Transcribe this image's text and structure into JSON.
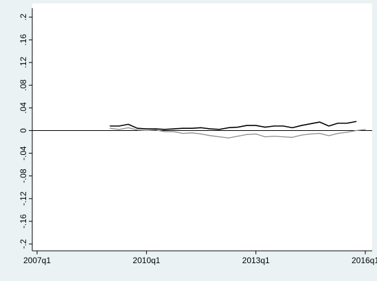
{
  "chart_data": {
    "type": "line",
    "title": "",
    "xlabel": "",
    "ylabel": "",
    "ylim": [
      -0.2,
      0.2
    ],
    "yticks": [
      {
        "value": -0.2,
        "label": "-.2"
      },
      {
        "value": -0.16,
        "label": "-.16"
      },
      {
        "value": -0.12,
        "label": "-.12"
      },
      {
        "value": -0.08,
        "label": "-.08"
      },
      {
        "value": -0.04,
        "label": "-.04"
      },
      {
        "value": 0,
        "label": "0"
      },
      {
        "value": 0.04,
        "label": ".04"
      },
      {
        "value": 0.08,
        "label": ".08"
      },
      {
        "value": 0.12,
        "label": ".12"
      },
      {
        "value": 0.16,
        "label": ".16"
      },
      {
        "value": 0.2,
        "label": ".2"
      }
    ],
    "xticks": [
      "2007q1",
      "2010q1",
      "2013q1",
      "2016q1"
    ],
    "x": [
      "2009q1",
      "2009q2",
      "2009q3",
      "2009q4",
      "2010q1",
      "2010q2",
      "2010q3",
      "2010q4",
      "2011q1",
      "2011q2",
      "2011q3",
      "2011q4",
      "2012q1",
      "2012q2",
      "2012q3",
      "2012q4",
      "2013q1",
      "2013q2",
      "2013q3",
      "2013q4",
      "2014q1",
      "2014q2",
      "2014q3",
      "2014q4",
      "2015q1",
      "2015q2",
      "2015q3",
      "2015q4",
      "2016q1"
    ],
    "series": [
      {
        "color": "#000000",
        "values": [
          0.008,
          0.008,
          0.011,
          0.004,
          0.003,
          0.003,
          0.002,
          0.003,
          0.004,
          0.004,
          0.005,
          0.003,
          0.002,
          0.005,
          0.006,
          0.009,
          0.009,
          0.006,
          0.008,
          0.008,
          0.005,
          0.009,
          0.012,
          0.015,
          0.008,
          0.013,
          0.013,
          0.016,
          null
        ]
      },
      {
        "color": "#8a8a8a",
        "values": [
          0.004,
          0.002,
          0.005,
          0.001,
          0.0,
          0.001,
          -0.002,
          -0.002,
          -0.005,
          -0.004,
          -0.006,
          -0.009,
          -0.011,
          -0.013,
          -0.01,
          -0.007,
          -0.006,
          -0.011,
          -0.01,
          -0.011,
          -0.012,
          -0.008,
          -0.006,
          -0.005,
          -0.009,
          -0.005,
          -0.003,
          0.0,
          0.002
        ]
      }
    ],
    "zero_line": 0,
    "grid": false,
    "legend": "none"
  },
  "colors": {
    "background": "#eaf2f3",
    "plot_background": "#ffffff"
  }
}
